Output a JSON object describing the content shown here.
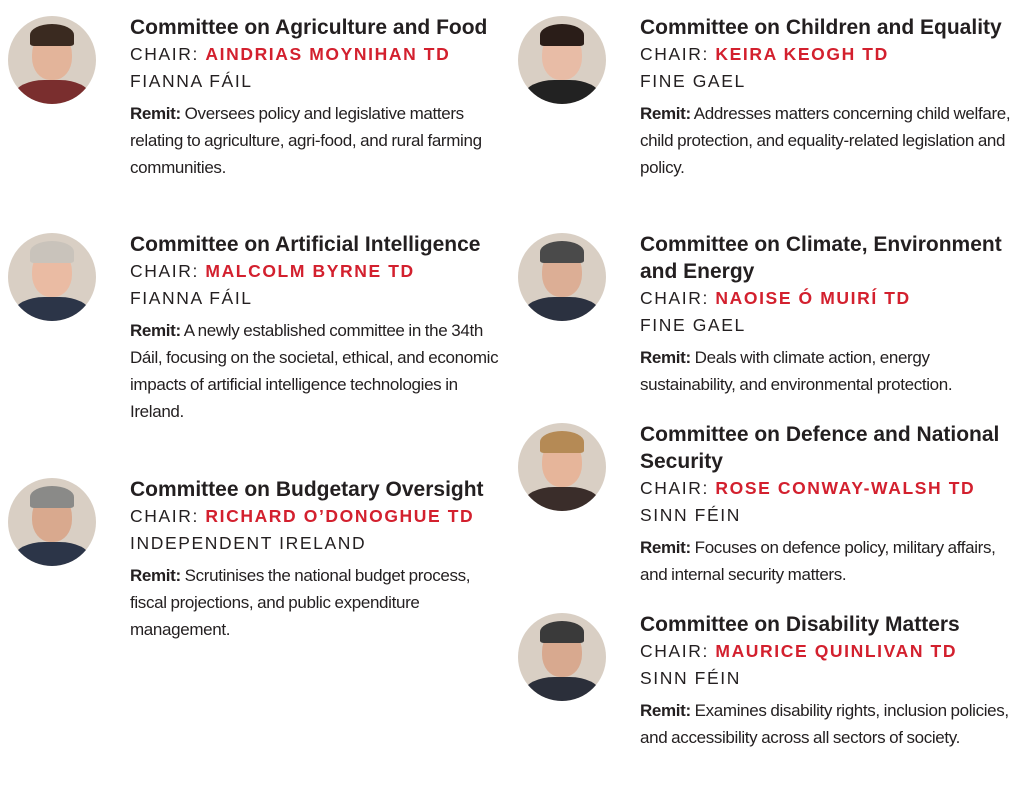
{
  "chair_label": "CHAIR:",
  "remit_label": "Remit:",
  "accent_color": "#d3202e",
  "committees": [
    {
      "title": "Committee on Agriculture and Food",
      "chair": "AINDRIAS MOYNIHAN TD",
      "party": "FIANNA FÁIL",
      "remit": "Oversees policy and legislative matters relating to agriculture, agri-food, and rural farming communities."
    },
    {
      "title": "Committee on Artificial Intelligence",
      "chair": "MALCOLM BYRNE TD",
      "party": "FIANNA FÁIL",
      "remit": "A newly established committee in the 34th Dáil, focusing on the societal, ethical, and economic impacts of artificial intelligence technologies in Ireland."
    },
    {
      "title": "Committee on Budgetary Oversight",
      "chair": "RICHARD O’DONOGHUE TD",
      "party": "INDEPENDENT IRELAND",
      "remit": "Scrutinises the national budget process, fiscal projections, and public expenditure management."
    },
    {
      "title": "Committee on Children and Equality",
      "chair": "KEIRA KEOGH TD",
      "party": "FINE GAEL",
      "remit": "Addresses matters concerning child welfare, child protection, and equality-related legislation and policy."
    },
    {
      "title": "Committee on Climate, Environment and Energy",
      "chair": "NAOISE Ó MUIRÍ TD",
      "party": "FINE GAEL",
      "remit": "Deals with climate action, energy sustainability, and environmental protection."
    },
    {
      "title": "Committee on Defence and National Security",
      "chair": "ROSE CONWAY-WALSH TD",
      "party": "SINN FÉIN",
      "remit": "Focuses on defence policy, military affairs, and internal security matters."
    },
    {
      "title": "Committee on Disability Matters",
      "chair": "MAURICE QUINLIVAN TD",
      "party": "SINN FÉIN",
      "remit": "Examines disability rights, inclusion policies, and accessibility across all sectors of society."
    }
  ]
}
